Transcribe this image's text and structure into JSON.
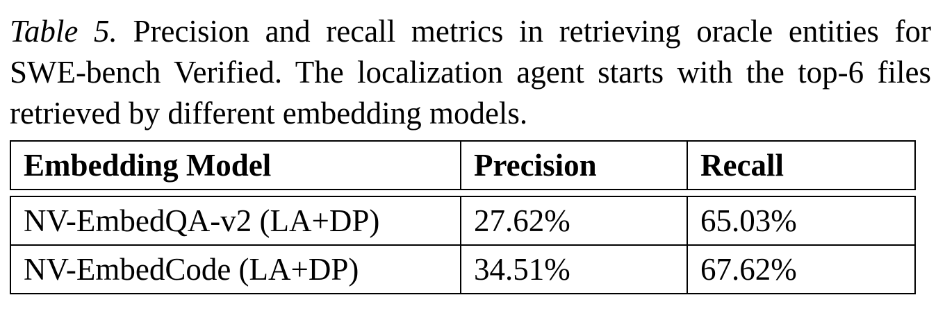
{
  "caption": {
    "label": "Table 5.",
    "text": " Precision and recall metrics in retrieving oracle entities for SWE-bench Verified.  The localization agent starts with the top-6 files retrieved by different embedding models."
  },
  "table": {
    "headers": [
      "Embedding Model",
      "Precision",
      "Recall"
    ],
    "rows": [
      [
        "NV-EmbedQA-v2 (LA+DP)",
        "27.62%",
        "65.03%"
      ],
      [
        "NV-EmbedCode (LA+DP)",
        "34.51%",
        "67.62%"
      ]
    ]
  }
}
